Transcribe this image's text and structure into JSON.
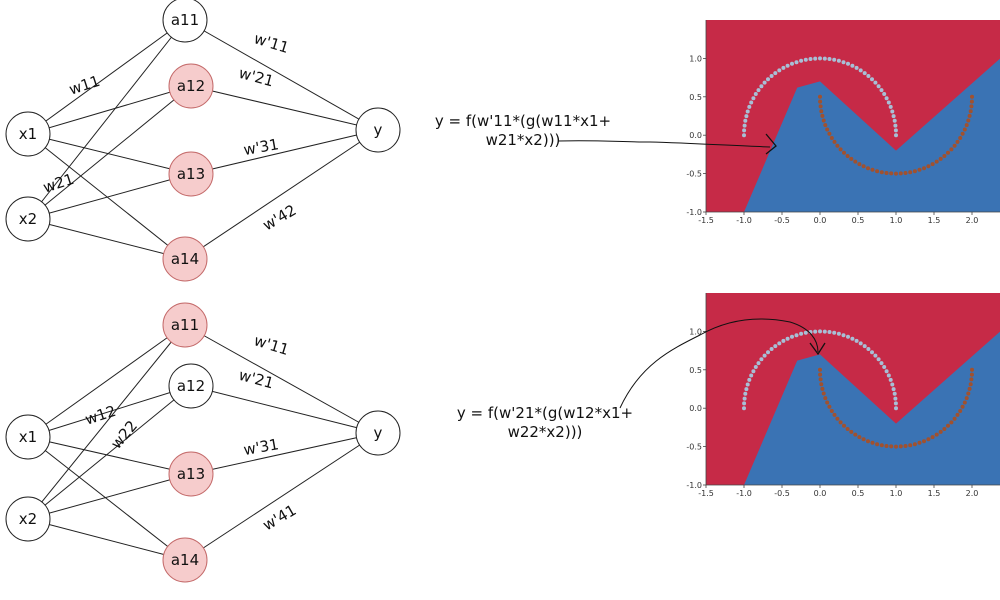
{
  "colors": {
    "active_fill": "#f6cccc",
    "inactive_fill": "#ffffff",
    "node_stroke": "#222222",
    "region_red": "#c62a47",
    "region_blue": "#3a73b4",
    "moon_top": "#a8bfd6",
    "moon_bottom": "#a0512f"
  },
  "top_network": {
    "inputs": [
      "x1",
      "x2"
    ],
    "hidden": [
      {
        "label": "a11",
        "active": false
      },
      {
        "label": "a12",
        "active": true
      },
      {
        "label": "a13",
        "active": true
      },
      {
        "label": "a14",
        "active": true
      }
    ],
    "output": "y",
    "input_weights": [
      "w11",
      "w21"
    ],
    "output_weights": [
      "w'11",
      "w'21",
      "w'31",
      "w'42"
    ],
    "formula_line1": "y = f(w'11*(g(w11*x1+",
    "formula_line2": "w21*x2)))"
  },
  "bottom_network": {
    "inputs": [
      "x1",
      "x2"
    ],
    "hidden": [
      {
        "label": "a11",
        "active": true
      },
      {
        "label": "a12",
        "active": false
      },
      {
        "label": "a13",
        "active": true
      },
      {
        "label": "a14",
        "active": true
      }
    ],
    "output": "y",
    "input_weights": [
      "w12",
      "w22"
    ],
    "output_weights": [
      "w'11",
      "w'21",
      "w'31",
      "w'41"
    ],
    "formula_line1": "y = f(w'21*(g(w12*x1+",
    "formula_line2": "w22*x2)))"
  },
  "chart_data": [
    {
      "type": "area",
      "xlim": [
        -1.5,
        2.5
      ],
      "ylim": [
        -1.0,
        1.5
      ],
      "x_ticks": [
        "-1.5",
        "-1.0",
        "-0.5",
        "0.0",
        "0.5",
        "1.0",
        "1.5",
        "2.0"
      ],
      "y_ticks": [
        "1.0",
        "0.5",
        "0.0",
        "-0.5",
        "-1.0"
      ],
      "x_tick_values": [
        -1.5,
        -1.0,
        -0.5,
        0.0,
        0.5,
        1.0,
        1.5,
        2.0
      ],
      "y_tick_values": [
        1.0,
        0.5,
        0.0,
        -0.5,
        -1.0
      ],
      "boundary": [
        [
          -1.0,
          -1.0
        ],
        [
          -0.3,
          0.62
        ],
        [
          0.0,
          0.7
        ],
        [
          1.0,
          -0.2
        ],
        [
          2.6,
          1.2
        ]
      ],
      "series": [
        {
          "values": "upper moon: x = cos(t), y = sin(t), t in [0, pi]"
        },
        {
          "values": "lower moon: x = 1 - cos(t), y = 0.5 - sin(t), t in [0, pi]"
        }
      ]
    },
    {
      "type": "area",
      "xlim": [
        -1.5,
        2.5
      ],
      "ylim": [
        -1.0,
        1.5
      ],
      "x_ticks": [
        "-1.5",
        "-1.0",
        "-0.5",
        "0.0",
        "0.5",
        "1.0",
        "1.5",
        "2.0"
      ],
      "y_ticks": [
        "1.0",
        "0.5",
        "0.0",
        "-0.5",
        "-1.0"
      ],
      "x_tick_values": [
        -1.5,
        -1.0,
        -0.5,
        0.0,
        0.5,
        1.0,
        1.5,
        2.0
      ],
      "y_tick_values": [
        1.0,
        0.5,
        0.0,
        -0.5,
        -1.0
      ],
      "boundary": [
        [
          -1.0,
          -1.0
        ],
        [
          -0.3,
          0.62
        ],
        [
          0.0,
          0.7
        ],
        [
          1.0,
          -0.2
        ],
        [
          2.6,
          1.2
        ]
      ],
      "series": [
        {
          "values": "upper moon: x = cos(t), y = sin(t), t in [0, pi]"
        },
        {
          "values": "lower moon: x = 1 - cos(t), y = 0.5 - sin(t), t in [0, pi]"
        }
      ]
    }
  ]
}
